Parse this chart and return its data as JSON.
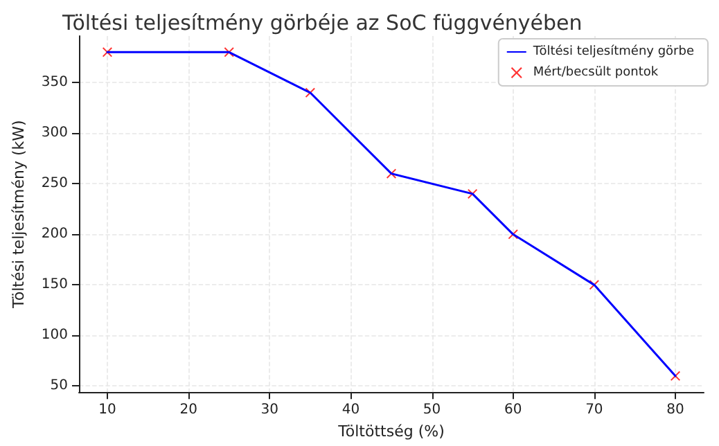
{
  "chart_data": {
    "type": "line",
    "title": "Töltési teljesítmény görbéje az SoC függvényében",
    "xlabel": "Töltöttség (%)",
    "ylabel": "Töltési teljesítmény (kW)",
    "x": [
      10,
      25,
      35,
      45,
      55,
      60,
      70,
      80
    ],
    "series": [
      {
        "name": "Töltési teljesítmény görbe",
        "color": "#0000ff",
        "marker": "none",
        "values": [
          380,
          380,
          340,
          260,
          240,
          200,
          150,
          60
        ]
      },
      {
        "name": "Mért/becsült pontok",
        "type": "scatter",
        "color": "#ff0000",
        "marker": "cross",
        "values": [
          380,
          380,
          340,
          260,
          240,
          200,
          150,
          60
        ]
      }
    ],
    "xlim": [
      6.5,
      83.5
    ],
    "xticks": [
      10,
      20,
      30,
      40,
      50,
      60,
      70,
      80
    ],
    "ylim": [
      44,
      396
    ],
    "yticks": [
      50,
      100,
      150,
      200,
      250,
      300,
      350
    ],
    "grid": true,
    "legend": "top right",
    "line_style": "solid"
  }
}
